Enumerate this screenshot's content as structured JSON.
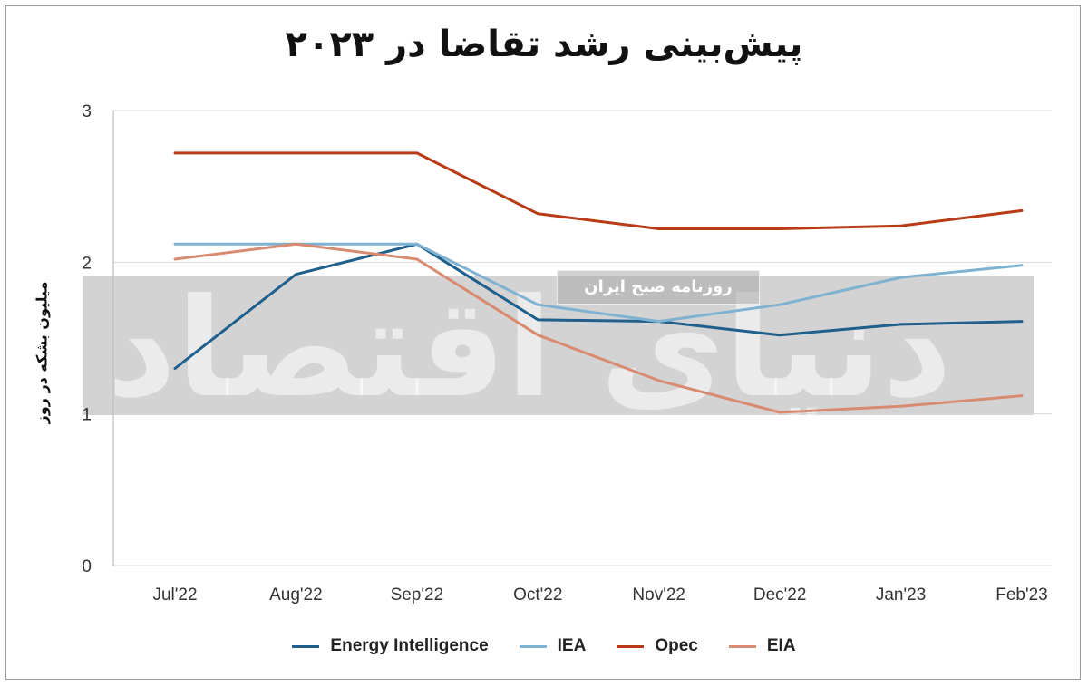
{
  "title": "پیش‌بینی رشد تقاضا در ۲۰۲۳",
  "watermark": {
    "logo": "دنیای اقتصاد",
    "tag": "روزنامه صبح ایران"
  },
  "chart_data": {
    "type": "line",
    "title": "پیش‌بینی رشد تقاضا در ۲۰۲۳",
    "xlabel": "",
    "ylabel": "میلیون بشکه در روز",
    "ylim": [
      0,
      3
    ],
    "yticks": [
      "0",
      "1",
      "2",
      "3"
    ],
    "grid": true,
    "legend_position": "bottom",
    "categories": [
      "Jul'22",
      "Aug'22",
      "Sep'22",
      "Oct'22",
      "Nov'22",
      "Dec'22",
      "Jan'23",
      "Feb'23"
    ],
    "series": [
      {
        "name": "Energy Intelligence",
        "color": "#1f5f8b",
        "values": [
          1.3,
          1.92,
          2.12,
          1.62,
          1.61,
          1.52,
          1.59,
          1.61
        ]
      },
      {
        "name": "IEA",
        "color": "#7fb2d0",
        "values": [
          2.12,
          2.12,
          2.12,
          1.72,
          1.61,
          1.72,
          1.9,
          1.98
        ]
      },
      {
        "name": "Opec",
        "color": "#b83a17",
        "values": [
          2.72,
          2.72,
          2.72,
          2.32,
          2.22,
          2.22,
          2.24,
          2.34
        ]
      },
      {
        "name": "EIA",
        "color": "#d98b72",
        "values": [
          2.02,
          2.12,
          2.02,
          1.52,
          1.22,
          1.01,
          1.05,
          1.12
        ]
      }
    ]
  }
}
